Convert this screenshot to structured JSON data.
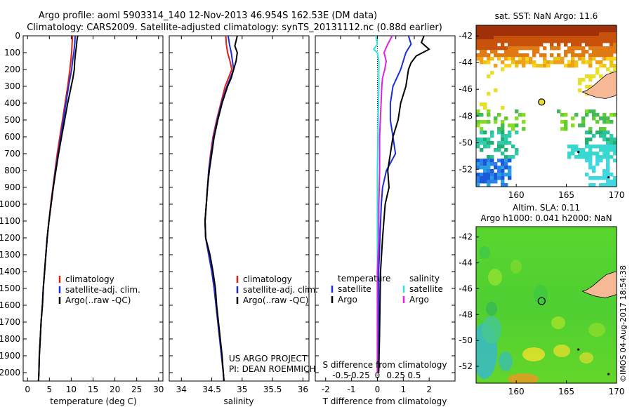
{
  "header": {
    "line1": "Argo profile: aoml 5903314_140 12-Nov-2013 46.954S 162.53E (DM data)",
    "line2": "Climatology: CARS2009. Satellite-adjusted climatology: synTS_20131112.nc (0.88d earlier)"
  },
  "colors": {
    "climatology": "#e0201a",
    "satellite": "#1a2ed6",
    "argo": "#000000",
    "sat_salinity": "#30e0e0",
    "argo_salinity": "#e020e0",
    "land": "#f7b995"
  },
  "chart_data": [
    {
      "type": "line",
      "name": "temperature_profile",
      "xlabel": "temperature (deg C)",
      "xlim": [
        -1,
        31
      ],
      "ylim": [
        2050,
        0
      ],
      "xticks": [
        0,
        5,
        10,
        15,
        20,
        25,
        30
      ],
      "yticks": [
        0,
        100,
        200,
        300,
        400,
        500,
        600,
        700,
        800,
        900,
        1000,
        1100,
        1200,
        1300,
        1400,
        1500,
        1600,
        1700,
        1800,
        1900,
        2000
      ],
      "legend": [
        "climatology",
        "satellite-adj. clim.",
        "Argo(..raw -QC)"
      ],
      "series": [
        {
          "name": "climatology",
          "depth": [
            0,
            50,
            100,
            150,
            200,
            300,
            400,
            500,
            600,
            700,
            800,
            900,
            1000,
            1100,
            1200,
            1300,
            1400,
            1500,
            1600,
            1700,
            1800,
            1900,
            2000,
            2050
          ],
          "values": [
            10.3,
            10.2,
            10.1,
            9.9,
            9.7,
            9.2,
            8.6,
            8.0,
            7.4,
            6.8,
            6.3,
            5.8,
            5.3,
            4.9,
            4.5,
            4.2,
            3.9,
            3.6,
            3.4,
            3.1,
            2.9,
            2.7,
            2.6,
            2.5
          ]
        },
        {
          "name": "satellite-adj. clim.",
          "depth": [
            0,
            50,
            100,
            150,
            200,
            300,
            400,
            500,
            600,
            700,
            800,
            900,
            1000,
            1100,
            1200,
            1300,
            1400,
            1500,
            1600,
            1700,
            1800,
            1900,
            2000,
            2050
          ],
          "values": [
            10.9,
            10.8,
            10.6,
            10.3,
            10.1,
            9.4,
            8.8,
            8.2,
            7.6,
            7.0,
            6.4,
            5.9,
            5.4,
            4.9,
            4.5,
            4.2,
            3.9,
            3.6,
            3.4,
            3.1,
            2.9,
            2.7,
            2.6,
            2.5
          ]
        },
        {
          "name": "Argo(..raw -QC)",
          "depth": [
            0,
            30,
            60,
            100,
            150,
            200,
            250,
            300,
            400,
            500,
            600,
            700,
            800,
            900,
            1000,
            1100,
            1200,
            1300,
            1400,
            1500,
            1600,
            1700,
            1800,
            1900,
            2000,
            2050
          ],
          "values": [
            11.5,
            11.3,
            11.2,
            11.0,
            10.8,
            10.7,
            10.4,
            10.0,
            9.2,
            8.5,
            7.8,
            7.1,
            6.5,
            5.9,
            5.4,
            4.9,
            4.5,
            4.2,
            3.9,
            3.6,
            3.4,
            3.1,
            2.9,
            2.7,
            2.6,
            2.5
          ]
        }
      ]
    },
    {
      "type": "line",
      "name": "salinity_profile",
      "xlabel": "salinity",
      "xlim": [
        33.8,
        36.1
      ],
      "ylim": [
        2050,
        0
      ],
      "xticks": [
        34,
        34.5,
        35,
        35.5,
        36
      ],
      "legend": [
        "climatology",
        "satellite-adj. clim.",
        "Argo(..raw -QC)"
      ],
      "annotation": [
        "US ARGO PROJECT",
        "PI: DEAN ROEMMICH"
      ],
      "series": [
        {
          "name": "climatology",
          "depth": [
            0,
            50,
            100,
            150,
            200,
            300,
            400,
            500,
            600,
            700,
            800,
            900,
            1000,
            1100,
            1200,
            1300,
            1400,
            1500,
            1600,
            1700,
            1800,
            1900,
            2000,
            2050
          ],
          "values": [
            34.73,
            34.74,
            34.76,
            34.8,
            34.83,
            34.72,
            34.65,
            34.58,
            34.52,
            34.48,
            34.45,
            34.43,
            34.41,
            34.39,
            34.4,
            34.45,
            34.5,
            34.54,
            34.57,
            34.6,
            34.63,
            34.66,
            34.69,
            34.7
          ]
        },
        {
          "name": "satellite-adj. clim.",
          "depth": [
            0,
            50,
            100,
            150,
            200,
            300,
            400,
            500,
            600,
            700,
            800,
            900,
            1000,
            1100,
            1200,
            1300,
            1400,
            1500,
            1600,
            1700,
            1800,
            1900,
            2000,
            2050
          ],
          "values": [
            34.77,
            34.79,
            34.82,
            34.84,
            34.86,
            34.75,
            34.66,
            34.59,
            34.53,
            34.49,
            34.45,
            34.43,
            34.41,
            34.39,
            34.4,
            34.45,
            34.5,
            34.54,
            34.57,
            34.6,
            34.63,
            34.66,
            34.69,
            34.7
          ]
        },
        {
          "name": "Argo(..raw -QC)",
          "depth": [
            0,
            30,
            60,
            100,
            150,
            200,
            250,
            300,
            400,
            500,
            600,
            700,
            800,
            900,
            1000,
            1100,
            1200,
            1300,
            1400,
            1500,
            1600,
            1700,
            1800,
            1900,
            2000,
            2050
          ],
          "values": [
            34.92,
            34.9,
            34.88,
            34.92,
            34.9,
            34.86,
            34.82,
            34.76,
            34.67,
            34.6,
            34.54,
            34.5,
            34.46,
            34.43,
            34.41,
            34.39,
            34.4,
            34.47,
            34.52,
            34.56,
            34.58,
            34.61,
            34.64,
            34.67,
            34.69,
            34.7
          ]
        }
      ]
    },
    {
      "type": "line",
      "name": "difference_profile",
      "xlabel": "T difference from climatology",
      "x2label": "S difference from climatology",
      "xlim": [
        -2.4,
        3
      ],
      "s_xlim": [
        -0.6,
        0.75
      ],
      "ylim": [
        2050,
        0
      ],
      "xticks": [
        -2,
        -1,
        0,
        1,
        2
      ],
      "s_xticks": [
        -0.5,
        -0.25,
        0,
        0.25,
        0.5
      ],
      "s_xtick_labels": [
        "-0.5",
        "-0.25",
        "0",
        "0.25",
        "0.5"
      ],
      "legend_left": {
        "title": "temperature",
        "entries": [
          "satellite",
          "Argo"
        ]
      },
      "legend_right": {
        "title": "salinity",
        "entries": [
          "satellite",
          "Argo"
        ]
      },
      "series": [
        {
          "name": "satellite",
          "kind": "T",
          "depth": [
            0,
            50,
            100,
            150,
            200,
            300,
            400,
            500,
            600,
            700,
            800,
            900,
            1000,
            1200,
            1400,
            1600,
            1800,
            2000
          ],
          "values": [
            1.2,
            1.3,
            1.1,
            1.0,
            0.9,
            0.6,
            0.5,
            0.5,
            0.6,
            0.7,
            0.35,
            0.2,
            0.15,
            0.1,
            0.05,
            0.05,
            0.03,
            0.02
          ]
        },
        {
          "name": "Argo",
          "kind": "T",
          "depth": [
            0,
            40,
            80,
            120,
            160,
            200,
            300,
            400,
            500,
            600,
            700,
            800,
            900,
            1000,
            1200,
            1400,
            1600,
            1800,
            2000
          ],
          "values": [
            1.8,
            1.7,
            2.0,
            1.5,
            1.3,
            1.2,
            1.1,
            0.9,
            0.8,
            0.6,
            0.5,
            0.4,
            0.45,
            0.3,
            0.2,
            0.12,
            0.1,
            0.08,
            0.05
          ]
        },
        {
          "name": "satellite",
          "kind": "S",
          "depth": [
            0,
            50,
            80,
            100,
            150,
            200,
            300,
            500,
            800,
            1000,
            1200,
            1400,
            1600,
            1800,
            2000
          ],
          "values": [
            -0.02,
            0.0,
            -0.05,
            0.0,
            0.02,
            0.02,
            0.02,
            0.01,
            0.0,
            0.0,
            0.0,
            0.0,
            0.0,
            0.0,
            0.0
          ]
        },
        {
          "name": "Argo",
          "kind": "S",
          "depth": [
            0,
            50,
            100,
            150,
            200,
            250,
            300,
            400,
            500,
            600,
            800,
            1000,
            1200,
            1400,
            1600,
            1800,
            2000
          ],
          "values": [
            0.2,
            0.14,
            0.09,
            0.12,
            0.1,
            0.07,
            0.06,
            0.05,
            0.04,
            0.03,
            0.03,
            0.02,
            0.02,
            0.0,
            0.0,
            0.0,
            0.0
          ]
        }
      ]
    },
    {
      "type": "heatmap",
      "name": "sst_map",
      "title": "sat. SST: NaN Argo: 11.6",
      "xlim": [
        156,
        170
      ],
      "ylim": [
        -53.3,
        -41.2
      ],
      "xticks": [
        160,
        165,
        170
      ],
      "yticks": [
        -52,
        -50,
        -48,
        -46,
        -44,
        -42
      ],
      "argo_position": [
        162.53,
        -46.954
      ]
    },
    {
      "type": "heatmap",
      "name": "sla_map",
      "title": [
        "Altim. SLA: 0.11",
        "Argo h1000: 0.041 h2000: NaN"
      ],
      "xlim": [
        156,
        170
      ],
      "ylim": [
        -53.3,
        -41.2
      ],
      "xticks": [
        160,
        165,
        170
      ],
      "yticks": [
        -52,
        -50,
        -48,
        -46,
        -44,
        -42
      ],
      "argo_position": [
        162.53,
        -46.954
      ]
    }
  ],
  "footer": {
    "credit": "©IMOS 04-Aug-2017 18:54:38"
  }
}
